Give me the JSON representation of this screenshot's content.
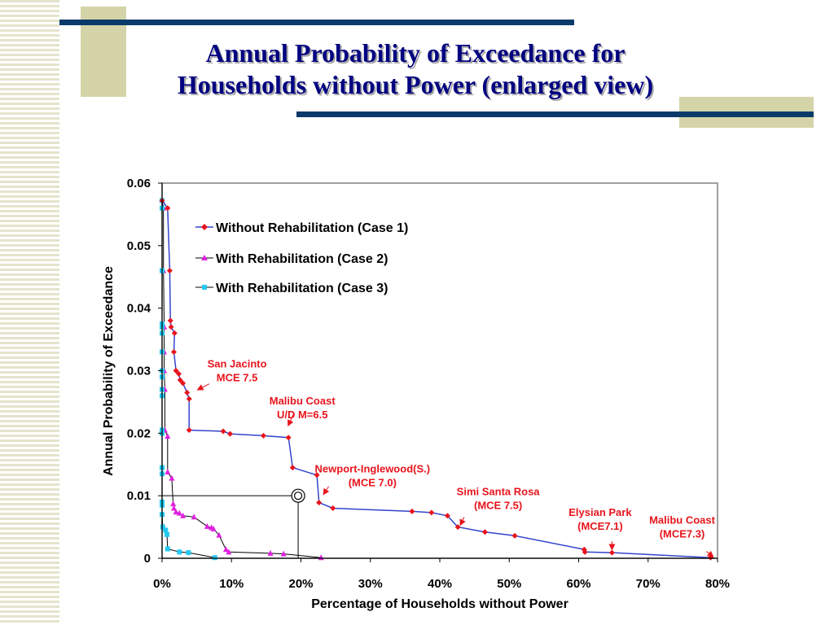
{
  "slide": {
    "title_line1": "Annual Probability of Exceedance for",
    "title_line2": "Households without Power (enlarged view)"
  },
  "colors": {
    "case1": "#e8141c",
    "case1_line": "#3344cc",
    "case2": "#e020e0",
    "case3": "#22c8f0",
    "annotation": "#e8141c",
    "title": "#000080",
    "deco_bar": "#0a3a6a",
    "deco_block": "#d4d4a8"
  },
  "chart_data": {
    "type": "line",
    "title": "",
    "xlabel": "Percentage of Households without Power",
    "ylabel": "Annual Probability of Exceedance",
    "xlim": [
      0,
      80
    ],
    "ylim": [
      0,
      0.06
    ],
    "x_ticks": [
      "0%",
      "10%",
      "20%",
      "30%",
      "40%",
      "50%",
      "60%",
      "70%",
      "80%"
    ],
    "y_ticks": [
      "0",
      "0.01",
      "0.02",
      "0.03",
      "0.04",
      "0.05",
      "0.06"
    ],
    "grid": false,
    "legend_position": "top-left",
    "series": [
      {
        "name": "Without Rehabilitation (Case 1)",
        "marker": "diamond",
        "points": [
          [
            0,
            0.0572
          ],
          [
            0.8,
            0.056
          ],
          [
            1.1,
            0.046
          ],
          [
            1.2,
            0.038
          ],
          [
            1.3,
            0.037
          ],
          [
            1.8,
            0.036
          ],
          [
            1.7,
            0.033
          ],
          [
            2.0,
            0.03
          ],
          [
            2.4,
            0.0295
          ],
          [
            2.6,
            0.0285
          ],
          [
            3.0,
            0.028
          ],
          [
            3.6,
            0.0265
          ],
          [
            3.9,
            0.0255
          ],
          [
            3.9,
            0.0205
          ],
          [
            8.8,
            0.0203
          ],
          [
            9.8,
            0.0199
          ],
          [
            14.6,
            0.0196
          ],
          [
            18.2,
            0.0193
          ],
          [
            18.8,
            0.0145
          ],
          [
            22.3,
            0.0133
          ],
          [
            22.6,
            0.0089
          ],
          [
            24.6,
            0.008
          ],
          [
            36.0,
            0.0075
          ],
          [
            38.8,
            0.0073
          ],
          [
            41.1,
            0.0068
          ],
          [
            42.6,
            0.005
          ],
          [
            46.5,
            0.0042
          ],
          [
            50.8,
            0.0036
          ],
          [
            60.8,
            0.0014
          ],
          [
            60.9,
            0.001
          ],
          [
            64.8,
            0.0009
          ],
          [
            79.0,
            0.0001
          ]
        ]
      },
      {
        "name": "With Rehabilitation (Case 2)",
        "marker": "triangle",
        "points": [
          [
            0,
            0.0572
          ],
          [
            0.2,
            0.056
          ],
          [
            0.2,
            0.046
          ],
          [
            0.3,
            0.037
          ],
          [
            0.3,
            0.033
          ],
          [
            0.3,
            0.03
          ],
          [
            0.4,
            0.027
          ],
          [
            0.4,
            0.0205
          ],
          [
            0.8,
            0.0195
          ],
          [
            0.8,
            0.0138
          ],
          [
            1.4,
            0.0128
          ],
          [
            1.6,
            0.0087
          ],
          [
            1.7,
            0.008
          ],
          [
            2.0,
            0.0074
          ],
          [
            2.5,
            0.0072
          ],
          [
            3.0,
            0.0068
          ],
          [
            4.6,
            0.0066
          ],
          [
            6.5,
            0.0051
          ],
          [
            7.1,
            0.0049
          ],
          [
            7.4,
            0.0047
          ],
          [
            8.2,
            0.0037
          ],
          [
            9.2,
            0.0014
          ],
          [
            9.6,
            0.001
          ],
          [
            15.6,
            0.0008
          ],
          [
            17.5,
            0.0007
          ],
          [
            22.9,
            0.0001
          ]
        ]
      },
      {
        "name": "With Rehabilitation (Case 3)",
        "marker": "square",
        "points": [
          [
            0,
            0.0572
          ],
          [
            0,
            0.056
          ],
          [
            0,
            0.046
          ],
          [
            0,
            0.0375
          ],
          [
            0,
            0.037
          ],
          [
            0,
            0.036
          ],
          [
            0,
            0.033
          ],
          [
            0,
            0.03
          ],
          [
            0,
            0.029
          ],
          [
            0,
            0.027
          ],
          [
            0,
            0.026
          ],
          [
            0,
            0.0205
          ],
          [
            0,
            0.02
          ],
          [
            0,
            0.0145
          ],
          [
            0,
            0.0135
          ],
          [
            0,
            0.009
          ],
          [
            0,
            0.0085
          ],
          [
            0,
            0.007
          ],
          [
            0.1,
            0.005
          ],
          [
            0.5,
            0.0045
          ],
          [
            0.7,
            0.0038
          ],
          [
            0.8,
            0.0015
          ],
          [
            2.5,
            0.001
          ],
          [
            3.8,
            0.0009
          ],
          [
            7.6,
            0.0001
          ]
        ]
      }
    ],
    "reference_marker": {
      "x": 19.6,
      "y": 0.01
    },
    "annotations": [
      {
        "lines": [
          "San Jacinto",
          "MCE 7.5"
        ],
        "x": 10.8,
        "y": 0.0305,
        "arrow_to": [
          5.2,
          0.027
        ],
        "arrow_from": [
          6.8,
          0.0279
        ]
      },
      {
        "lines": [
          "Malibu Coast",
          "U/D M=6.5"
        ],
        "x": 20.2,
        "y": 0.0246,
        "arrow_to": [
          18.2,
          0.0213
        ],
        "arrow_from": [
          18.9,
          0.023
        ]
      },
      {
        "lines": [
          "Newport-Inglewood(S.)",
          "(MCE 7.0)"
        ],
        "x": 30.3,
        "y": 0.0137,
        "arrow_to": [
          23.3,
          0.0103
        ],
        "arrow_from": [
          24.0,
          0.0115
        ]
      },
      {
        "lines": [
          "Simi Santa Rosa",
          "(MCE 7.5)"
        ],
        "x": 48.4,
        "y": 0.0101,
        "arrow_to": [
          43.0,
          0.0054
        ],
        "arrow_from": [
          43.5,
          0.0066
        ]
      },
      {
        "lines": [
          "Elysian Park",
          "(MCE7.1)"
        ],
        "x": 63.1,
        "y": 0.0068,
        "arrow_to": [
          64.8,
          0.0015
        ],
        "arrow_from": [
          64.8,
          0.0027
        ]
      },
      {
        "lines": [
          "Malibu Coast",
          "(MCE7.3)"
        ],
        "x": 74.9,
        "y": 0.0055,
        "arrow_to": [
          79.3,
          0.0003
        ],
        "arrow_from": [
          78.4,
          0.0011
        ]
      }
    ]
  }
}
